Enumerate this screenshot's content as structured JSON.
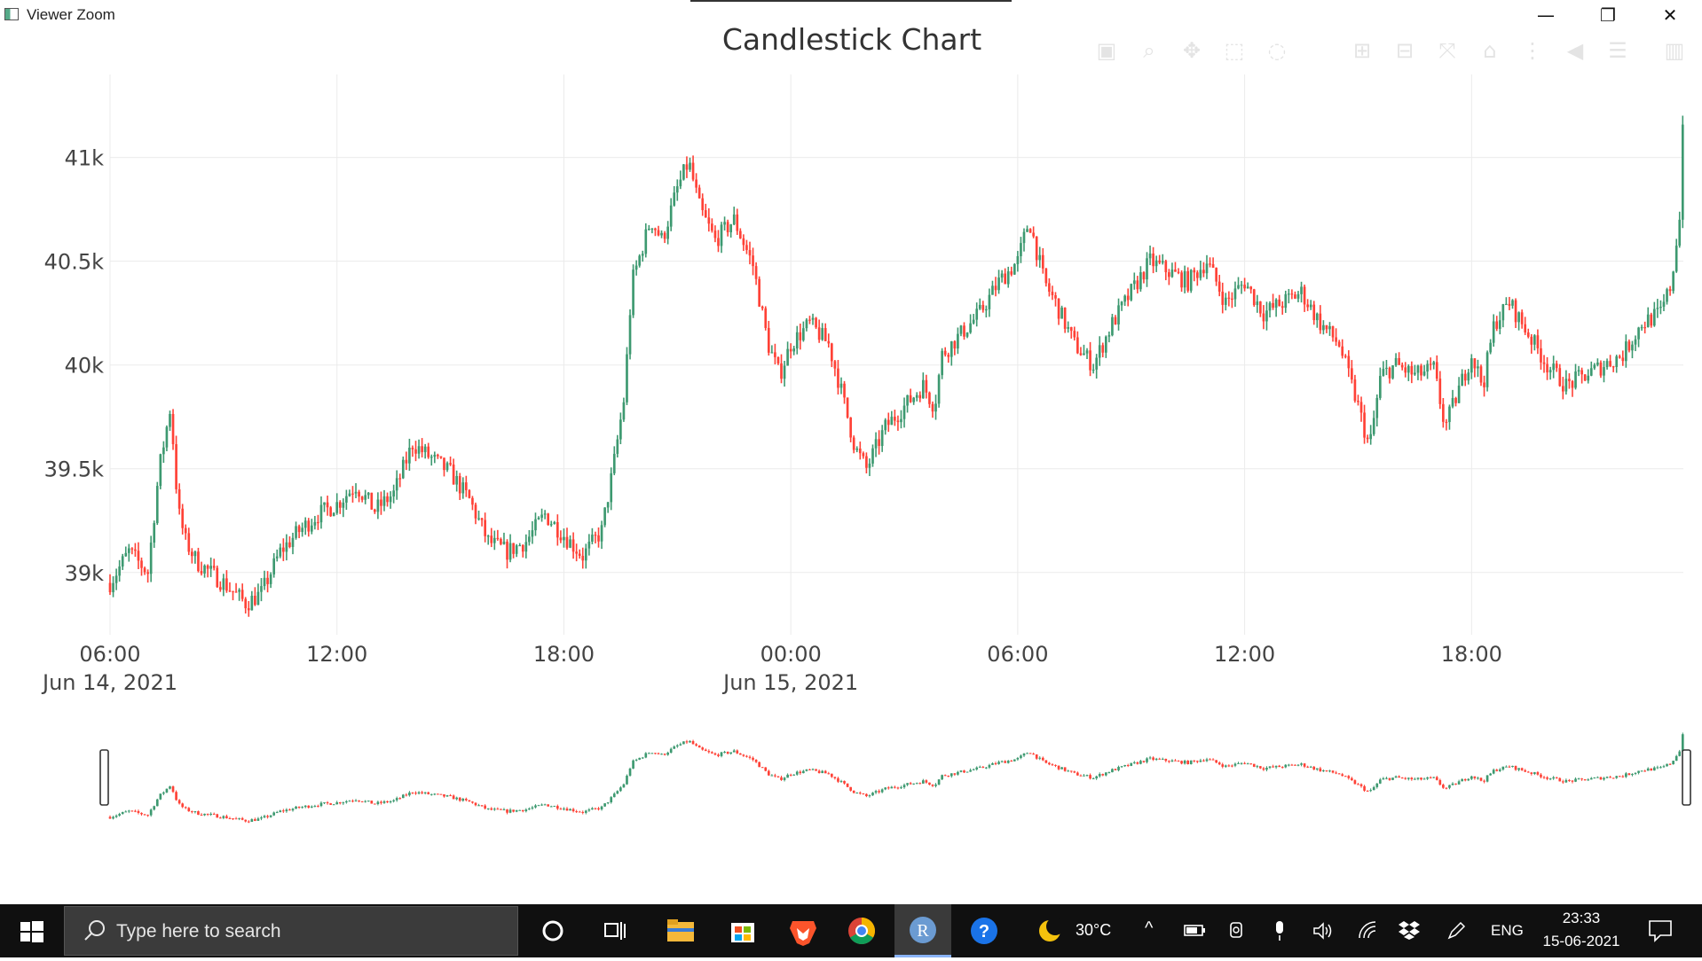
{
  "window": {
    "title": "Viewer Zoom",
    "minimize_label": "—",
    "maximize_label": "❐",
    "close_label": "✕"
  },
  "chart_data": {
    "type": "candlestick",
    "title": "Candlestick Chart",
    "xlabel": "",
    "ylabel": "",
    "ylim": [
      38700,
      41400
    ],
    "y_ticks": [
      {
        "value": 39000,
        "label": "39k"
      },
      {
        "value": 39500,
        "label": "39.5k"
      },
      {
        "value": 40000,
        "label": "40k"
      },
      {
        "value": 40500,
        "label": "40.5k"
      },
      {
        "value": 41000,
        "label": "41k"
      }
    ],
    "x_ticks": [
      {
        "hour": 6,
        "label": "06:00",
        "sublabel": "Jun 14, 2021"
      },
      {
        "hour": 12,
        "label": "12:00",
        "sublabel": ""
      },
      {
        "hour": 18,
        "label": "18:00",
        "sublabel": ""
      },
      {
        "hour": 24,
        "label": "00:00",
        "sublabel": "Jun 15, 2021"
      },
      {
        "hour": 30,
        "label": "06:00",
        "sublabel": ""
      },
      {
        "hour": 36,
        "label": "12:00",
        "sublabel": ""
      },
      {
        "hour": 42,
        "label": "18:00",
        "sublabel": ""
      }
    ],
    "x_range_hours": [
      6,
      47.6
    ],
    "grid": true,
    "increasing_color": "#3D9970",
    "decreasing_color": "#FF4136",
    "price_path": [
      [
        6.0,
        38950
      ],
      [
        6.5,
        39100
      ],
      [
        7.0,
        39000
      ],
      [
        7.3,
        39500
      ],
      [
        7.6,
        39800
      ],
      [
        7.8,
        39300
      ],
      [
        8.0,
        39150
      ],
      [
        8.3,
        39050
      ],
      [
        9.0,
        38950
      ],
      [
        9.6,
        38850
      ],
      [
        10.0,
        38900
      ],
      [
        10.5,
        39100
      ],
      [
        11.0,
        39200
      ],
      [
        11.5,
        39280
      ],
      [
        12.0,
        39330
      ],
      [
        12.5,
        39420
      ],
      [
        13.0,
        39300
      ],
      [
        13.5,
        39380
      ],
      [
        14.0,
        39620
      ],
      [
        14.5,
        39550
      ],
      [
        15.0,
        39480
      ],
      [
        15.5,
        39350
      ],
      [
        16.0,
        39150
      ],
      [
        16.5,
        39100
      ],
      [
        17.0,
        39150
      ],
      [
        17.5,
        39280
      ],
      [
        18.0,
        39180
      ],
      [
        18.5,
        39080
      ],
      [
        19.0,
        39200
      ],
      [
        19.3,
        39500
      ],
      [
        19.6,
        39850
      ],
      [
        19.8,
        40400
      ],
      [
        20.3,
        40700
      ],
      [
        20.6,
        40600
      ],
      [
        21.0,
        40850
      ],
      [
        21.3,
        40980
      ],
      [
        21.6,
        40750
      ],
      [
        22.0,
        40600
      ],
      [
        22.5,
        40700
      ],
      [
        23.0,
        40480
      ],
      [
        23.4,
        40100
      ],
      [
        23.7,
        39950
      ],
      [
        24.0,
        40100
      ],
      [
        24.5,
        40200
      ],
      [
        25.0,
        40100
      ],
      [
        25.3,
        39900
      ],
      [
        25.7,
        39600
      ],
      [
        26.0,
        39500
      ],
      [
        26.5,
        39700
      ],
      [
        27.0,
        39800
      ],
      [
        27.5,
        39900
      ],
      [
        27.8,
        39800
      ],
      [
        28.0,
        40050
      ],
      [
        28.5,
        40150
      ],
      [
        29.0,
        40250
      ],
      [
        29.5,
        40400
      ],
      [
        30.0,
        40500
      ],
      [
        30.3,
        40700
      ],
      [
        30.7,
        40400
      ],
      [
        31.0,
        40300
      ],
      [
        31.5,
        40100
      ],
      [
        32.0,
        40000
      ],
      [
        32.5,
        40200
      ],
      [
        33.0,
        40350
      ],
      [
        33.5,
        40500
      ],
      [
        34.0,
        40450
      ],
      [
        34.5,
        40400
      ],
      [
        35.0,
        40500
      ],
      [
        35.5,
        40300
      ],
      [
        36.0,
        40400
      ],
      [
        36.5,
        40250
      ],
      [
        37.0,
        40300
      ],
      [
        37.5,
        40350
      ],
      [
        38.0,
        40200
      ],
      [
        38.5,
        40100
      ],
      [
        39.0,
        39800
      ],
      [
        39.3,
        39600
      ],
      [
        39.6,
        39950
      ],
      [
        40.0,
        40000
      ],
      [
        40.5,
        39950
      ],
      [
        41.0,
        39980
      ],
      [
        41.3,
        39700
      ],
      [
        41.6,
        39850
      ],
      [
        42.0,
        40050
      ],
      [
        42.3,
        39900
      ],
      [
        42.6,
        40200
      ],
      [
        43.0,
        40300
      ],
      [
        43.5,
        40150
      ],
      [
        44.0,
        40000
      ],
      [
        44.5,
        39900
      ],
      [
        45.0,
        39950
      ],
      [
        45.5,
        40000
      ],
      [
        46.0,
        40050
      ],
      [
        46.5,
        40200
      ],
      [
        47.0,
        40250
      ],
      [
        47.3,
        40400
      ],
      [
        47.5,
        40700
      ],
      [
        47.6,
        41250
      ]
    ]
  },
  "modebar_icons": [
    "camera-icon",
    "zoom-icon",
    "pan-icon",
    "box-select-icon",
    "lasso-icon",
    "zoom-in-icon",
    "zoom-out-icon",
    "autoscale-icon",
    "reset-axes-icon",
    "spike-lines-icon",
    "hover-closest-icon",
    "hover-compare-icon",
    "plotly-logo-icon"
  ],
  "taskbar": {
    "search_placeholder": "Type here to search",
    "weather_temp": "30°C",
    "language": "ENG",
    "clock_time": "23:33",
    "clock_date": "15-06-2021",
    "r_app_label": "R",
    "help_label": "?"
  }
}
